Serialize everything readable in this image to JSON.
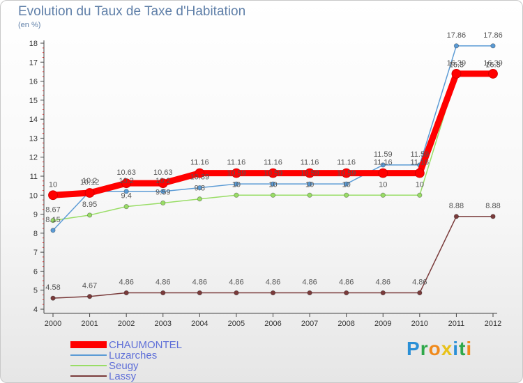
{
  "header": {
    "title": "Evolution du Taux de Taxe d'Habitation",
    "unit": "(en %)"
  },
  "brand": {
    "letters": [
      "P",
      "r",
      "o",
      "x",
      "i",
      "t",
      "i"
    ],
    "colors": [
      "#2a8fd6",
      "#2fa84a",
      "#f08a1c",
      "#e8c21a",
      "#2a8fd6",
      "#2fa84a",
      "#f08a1c"
    ]
  },
  "chart_data": {
    "type": "line",
    "x": [
      "2000",
      "2001",
      "2002",
      "2003",
      "2004",
      "2005",
      "2006",
      "2007",
      "2008",
      "2009",
      "2010",
      "2011",
      "2012"
    ],
    "ylim": [
      4,
      18
    ],
    "yticks": [
      4,
      5,
      6,
      7,
      8,
      9,
      10,
      11,
      12,
      13,
      14,
      15,
      16,
      17,
      18
    ],
    "grid": false,
    "legend_position": "bottom-left",
    "series": [
      {
        "name": "CHAUMONTEL",
        "color": "#ff0000",
        "values": [
          10,
          10.12,
          10.63,
          10.63,
          11.16,
          11.16,
          11.16,
          11.16,
          11.16,
          11.16,
          11.16,
          16.39,
          16.39
        ],
        "labels": [
          "10",
          "10.12",
          "10.63",
          "10.63",
          "11.16",
          "11.16",
          "11.16",
          "11.16",
          "11.16",
          "11.16",
          "11.16",
          "16.39",
          "16.39"
        ]
      },
      {
        "name": "Luzarches",
        "color": "#5b9bd5",
        "values": [
          8.15,
          10.2,
          10.2,
          10.2,
          10.39,
          10.59,
          10.59,
          10.59,
          10.59,
          11.59,
          11.59,
          17.86,
          17.86
        ],
        "labels": [
          "8.15",
          "10.2",
          "10.2",
          "10.2",
          "10.39",
          "10.59",
          "10.59",
          "10.59",
          "10.59",
          "11.59",
          "11.59",
          "17.86",
          "17.86"
        ]
      },
      {
        "name": "Seugy",
        "color": "#99dd66",
        "values": [
          8.67,
          8.95,
          9.4,
          9.59,
          9.8,
          10,
          10,
          10,
          10,
          10,
          10,
          16.3,
          16.3
        ],
        "labels": [
          "8.67",
          "8.95",
          "9.4",
          "9.59",
          "9.8",
          "10",
          "10",
          "10",
          "10",
          "10",
          "10",
          "16.3",
          "16.3"
        ]
      },
      {
        "name": "Lassy",
        "color": "#7a3b3b",
        "values": [
          4.58,
          4.67,
          4.86,
          4.86,
          4.86,
          4.86,
          4.86,
          4.86,
          4.86,
          4.86,
          4.86,
          8.88,
          8.88
        ],
        "labels": [
          "4.58",
          "4.67",
          "4.86",
          "4.86",
          "4.86",
          "4.86",
          "4.86",
          "4.86",
          "4.86",
          "4.86",
          "4.86",
          "8.88",
          "8.88"
        ]
      }
    ]
  }
}
